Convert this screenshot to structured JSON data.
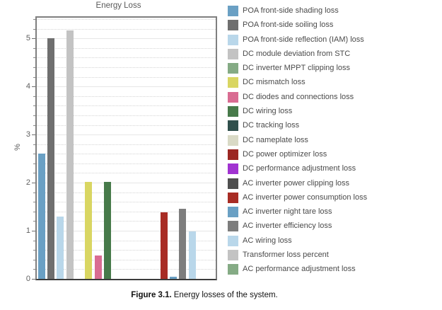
{
  "figure": {
    "caption_label": "Figure 3.1.",
    "caption_text": "Energy losses of the system."
  },
  "chart_data": {
    "type": "bar",
    "title": "Energy Loss",
    "xlabel": "",
    "ylabel": "%",
    "ylim": [
      0,
      5.43
    ],
    "ytick_labels": [
      "0",
      "1",
      "2",
      "3",
      "4",
      "5"
    ],
    "ytick_minor_step": 0.2,
    "grid": {
      "major": "solid",
      "minor": "dotted"
    },
    "legend_position": "right",
    "categories": [
      "POA front-side shading loss",
      "POA front-side soiling loss",
      "POA front-side reflection (IAM) loss",
      "DC module deviation from STC",
      "DC inverter MPPT clipping loss",
      "DC mismatch loss",
      "DC diodes and connections loss",
      "DC wiring loss",
      "DC tracking loss",
      "DC nameplate loss",
      "DC power optimizer loss",
      "DC performance adjustment loss",
      "AC inverter power clipping loss",
      "AC inverter power consumption loss",
      "AC inverter night tare loss",
      "AC inverter efficiency loss",
      "AC wiring loss",
      "Transformer loss percent",
      "AC performance adjustment loss"
    ],
    "values": [
      2.6,
      5.0,
      1.3,
      5.17,
      0,
      2.02,
      0.48,
      2.02,
      0,
      0,
      0,
      0,
      0,
      1.39,
      0.05,
      1.46,
      0.98,
      0,
      0
    ],
    "colors": [
      "#6aa0c4",
      "#6f6f6f",
      "#b9d7ea",
      "#c3c3c3",
      "#85ab85",
      "#d9d662",
      "#d96c92",
      "#477a4a",
      "#30504c",
      "#d9dac6",
      "#9b2723",
      "#a133d1",
      "#4f4f4f",
      "#a82c24",
      "#6aa0c4",
      "#7d7d7d",
      "#b9d7ea",
      "#c3c3c3",
      "#85ab85"
    ]
  }
}
